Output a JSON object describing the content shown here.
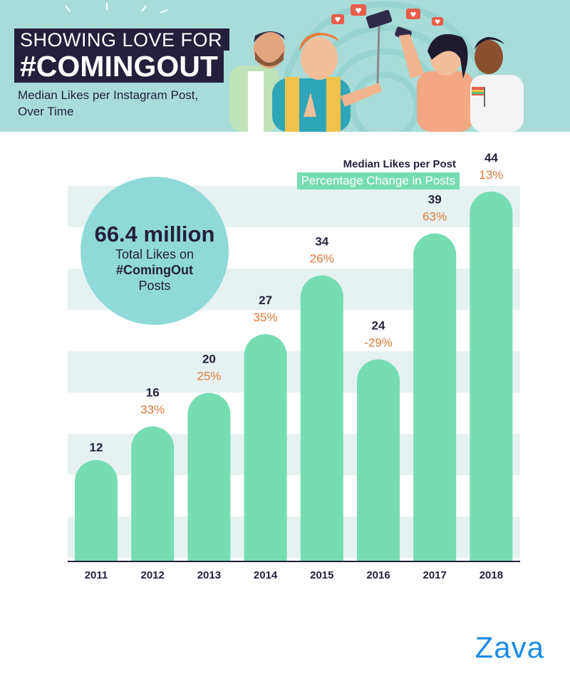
{
  "header": {
    "title_line1": "SHOWING LOVE FOR",
    "title_line2": "#COMINGOUT",
    "subtitle": "Median Likes per Instagram Post, Over Time"
  },
  "stat": {
    "value": "66.4 million",
    "line1": "Total Likes on",
    "line2": "#ComingOut",
    "line3": "Posts"
  },
  "legend": {
    "likes": "Median Likes per Post",
    "change": "Percentage Change in Posts"
  },
  "brand": "Zava",
  "colors": {
    "bar": "#76ddb3",
    "value_text": "#241f3d",
    "change_text": "#e07a3b",
    "band": "#e6f2f1",
    "circle": "#8fdad9"
  },
  "chart_data": {
    "type": "bar",
    "title": "Median Likes per Instagram Post, Over Time",
    "categories": [
      "2011",
      "2012",
      "2013",
      "2014",
      "2015",
      "2016",
      "2017",
      "2018"
    ],
    "series": [
      {
        "name": "Median Likes per Post",
        "values": [
          12,
          16,
          20,
          27,
          34,
          24,
          39,
          44
        ]
      },
      {
        "name": "Percentage Change in Posts",
        "values": [
          "",
          "33%",
          "25%",
          "35%",
          "26%",
          "-29%",
          "63%",
          "13%"
        ]
      }
    ],
    "ylim": [
      0,
      45
    ],
    "grid": "horizontal bands"
  }
}
